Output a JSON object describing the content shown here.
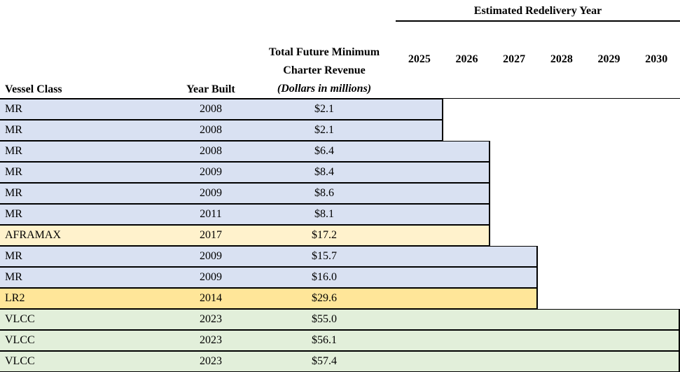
{
  "table": {
    "group_header": "Estimated Redelivery Year",
    "columns": {
      "vessel_class": "Vessel Class",
      "year_built": "Year Built",
      "revenue_line1": "Total Future Minimum",
      "revenue_line2": "Charter Revenue",
      "revenue_line3": "(Dollars in millions)"
    },
    "years": [
      "2025",
      "2026",
      "2027",
      "2028",
      "2029",
      "2030"
    ]
  },
  "colors": {
    "MR": "#D9E1F2",
    "AFRAMAX": "#FFF2CC",
    "LR2": "#FFE699",
    "VLCC": "#E2EFDA",
    "border": "#000000",
    "background": "#FFFFFF"
  },
  "chart_data": {
    "type": "table",
    "title": "Estimated Redelivery Year",
    "description": "Gantt-style charter coverage table: each row's shaded bar extends rightward to the vessel's estimated redelivery year",
    "x_categories": [
      "2025",
      "2026",
      "2027",
      "2028",
      "2029",
      "2030"
    ],
    "rows": [
      {
        "vessel_class": "MR",
        "year_built": "2008",
        "revenue_label": "$2.1",
        "revenue_musd": 2.1,
        "redelivery_year": "2025"
      },
      {
        "vessel_class": "MR",
        "year_built": "2008",
        "revenue_label": "$2.1",
        "revenue_musd": 2.1,
        "redelivery_year": "2025"
      },
      {
        "vessel_class": "MR",
        "year_built": "2008",
        "revenue_label": "$6.4",
        "revenue_musd": 6.4,
        "redelivery_year": "2026"
      },
      {
        "vessel_class": "MR",
        "year_built": "2009",
        "revenue_label": "$8.4",
        "revenue_musd": 8.4,
        "redelivery_year": "2026"
      },
      {
        "vessel_class": "MR",
        "year_built": "2009",
        "revenue_label": "$8.6",
        "revenue_musd": 8.6,
        "redelivery_year": "2026"
      },
      {
        "vessel_class": "MR",
        "year_built": "2011",
        "revenue_label": "$8.1",
        "revenue_musd": 8.1,
        "redelivery_year": "2026"
      },
      {
        "vessel_class": "AFRAMAX",
        "year_built": "2017",
        "revenue_label": "$17.2",
        "revenue_musd": 17.2,
        "redelivery_year": "2026"
      },
      {
        "vessel_class": "MR",
        "year_built": "2009",
        "revenue_label": "$15.7",
        "revenue_musd": 15.7,
        "redelivery_year": "2027"
      },
      {
        "vessel_class": "MR",
        "year_built": "2009",
        "revenue_label": "$16.0",
        "revenue_musd": 16.0,
        "redelivery_year": "2027"
      },
      {
        "vessel_class": "LR2",
        "year_built": "2014",
        "revenue_label": "$29.6",
        "revenue_musd": 29.6,
        "redelivery_year": "2027"
      },
      {
        "vessel_class": "VLCC",
        "year_built": "2023",
        "revenue_label": "$55.0",
        "revenue_musd": 55.0,
        "redelivery_year": "2030"
      },
      {
        "vessel_class": "VLCC",
        "year_built": "2023",
        "revenue_label": "$56.1",
        "revenue_musd": 56.1,
        "redelivery_year": "2030"
      },
      {
        "vessel_class": "VLCC",
        "year_built": "2023",
        "revenue_label": "$57.4",
        "revenue_musd": 57.4,
        "redelivery_year": "2030"
      }
    ]
  }
}
